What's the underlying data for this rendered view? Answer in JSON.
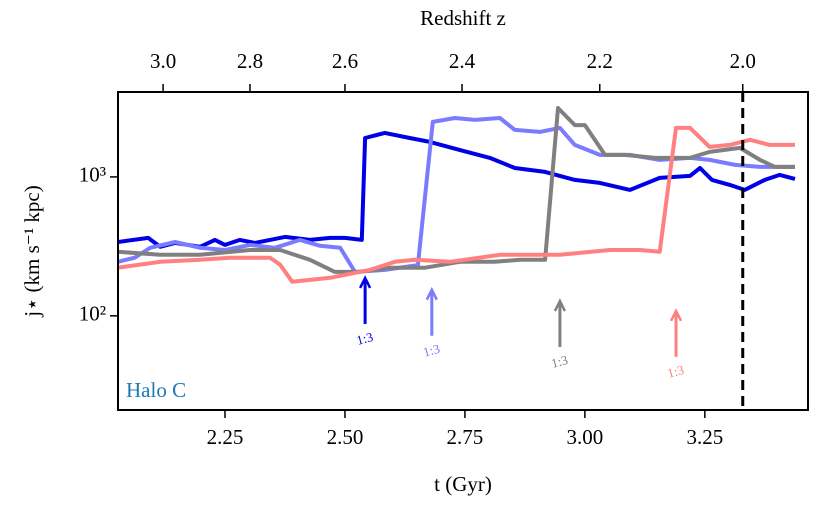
{
  "chart_data": {
    "type": "line",
    "xlabel": "t (Gyr)",
    "x2label": "Redshift z",
    "ylabel": "j⋆ (km s⁻¹ kpc)",
    "xlim": [
      2.027,
      3.465
    ],
    "xticks": [
      2.25,
      2.5,
      2.75,
      3.0,
      3.25
    ],
    "xtick_labels": [
      "2.25",
      "2.50",
      "2.75",
      "3.00",
      "3.25"
    ],
    "x2ticks": [
      {
        "value": 2.121,
        "label": "3.0"
      },
      {
        "value": 2.302,
        "label": "2.8"
      },
      {
        "value": 2.5,
        "label": "2.6"
      },
      {
        "value": 2.744,
        "label": "2.4"
      },
      {
        "value": 3.031,
        "label": "2.2"
      },
      {
        "value": 3.329,
        "label": "2.0"
      }
    ],
    "ylim": [
      21,
      4085
    ],
    "yscale": "log",
    "yticks": [
      {
        "value": 100,
        "label": "10²"
      },
      {
        "value": 1000,
        "label": "10³"
      }
    ],
    "vline": 3.329,
    "series": [
      {
        "color": "#0000e6",
        "x": [
          2.027,
          2.09,
          2.115,
          2.146,
          2.198,
          2.229,
          2.25,
          2.281,
          2.312,
          2.375,
          2.427,
          2.469,
          2.5,
          2.535,
          2.542,
          2.583,
          2.635,
          2.677,
          2.739,
          2.802,
          2.854,
          2.917,
          2.979,
          3.031,
          3.094,
          3.156,
          3.219,
          3.24,
          3.265,
          3.302,
          3.333,
          3.375,
          3.406,
          3.438
        ],
        "values": [
          340,
          364,
          314,
          335,
          314,
          352,
          324,
          352,
          335,
          370,
          352,
          364,
          364,
          352,
          1905,
          2073,
          1905,
          1786,
          1564,
          1370,
          1160,
          1086,
          951,
          905,
          806,
          983,
          1017,
          1160,
          951,
          876,
          806,
          951,
          1034,
          968
        ]
      },
      {
        "color": "#7b7bff",
        "x": [
          2.027,
          2.062,
          2.094,
          2.146,
          2.198,
          2.25,
          2.302,
          2.354,
          2.406,
          2.448,
          2.49,
          2.521,
          2.583,
          2.652,
          2.683,
          2.729,
          2.771,
          2.823,
          2.854,
          2.906,
          2.948,
          2.979,
          3.031,
          3.094,
          3.156,
          3.219,
          3.26,
          3.313,
          3.365,
          3.438
        ],
        "values": [
          245,
          262,
          309,
          340,
          309,
          298,
          324,
          309,
          352,
          319,
          309,
          207,
          214,
          232,
          2488,
          2656,
          2571,
          2656,
          2179,
          2110,
          2252,
          1700,
          1440,
          1440,
          1325,
          1370,
          1325,
          1220,
          1180,
          1180
        ]
      },
      {
        "color": "#808080",
        "x": [
          2.027,
          2.115,
          2.198,
          2.302,
          2.365,
          2.427,
          2.479,
          2.531,
          2.594,
          2.667,
          2.74,
          2.812,
          2.865,
          2.917,
          2.944,
          2.979,
          3.0,
          3.042,
          3.083,
          3.146,
          3.219,
          3.26,
          3.323,
          3.365,
          3.396,
          3.438
        ],
        "values": [
          289,
          275,
          275,
          298,
          298,
          253,
          207,
          207,
          222,
          222,
          245,
          245,
          253,
          253,
          3135,
          2360,
          2360,
          1440,
          1440,
          1370,
          1370,
          1513,
          1617,
          1325,
          1180,
          1180
        ]
      },
      {
        "color": "#ff8080",
        "x": [
          2.027,
          2.115,
          2.198,
          2.26,
          2.344,
          2.365,
          2.39,
          2.469,
          2.552,
          2.604,
          2.646,
          2.719,
          2.823,
          2.948,
          3.052,
          3.115,
          3.156,
          3.19,
          3.219,
          3.26,
          3.302,
          3.344,
          3.385,
          3.438
        ],
        "values": [
          222,
          245,
          253,
          262,
          262,
          233,
          176,
          188,
          214,
          245,
          253,
          245,
          275,
          275,
          298,
          298,
          289,
          2252,
          2252,
          1644,
          1700,
          1849,
          1700,
          1700
        ]
      }
    ],
    "annotations": [
      {
        "text": "1:3",
        "x": 2.542,
        "y": 214,
        "color": "#0000e6"
      },
      {
        "text": "1:3",
        "x": 2.681,
        "y": 176,
        "color": "#7b7bff"
      },
      {
        "text": "1:3",
        "x": 2.948,
        "y": 146,
        "color": "#808080"
      },
      {
        "text": "1:3",
        "x": 3.19,
        "y": 124,
        "color": "#ff8080"
      }
    ],
    "label": "Halo C",
    "label_color": "#1f77b4"
  }
}
